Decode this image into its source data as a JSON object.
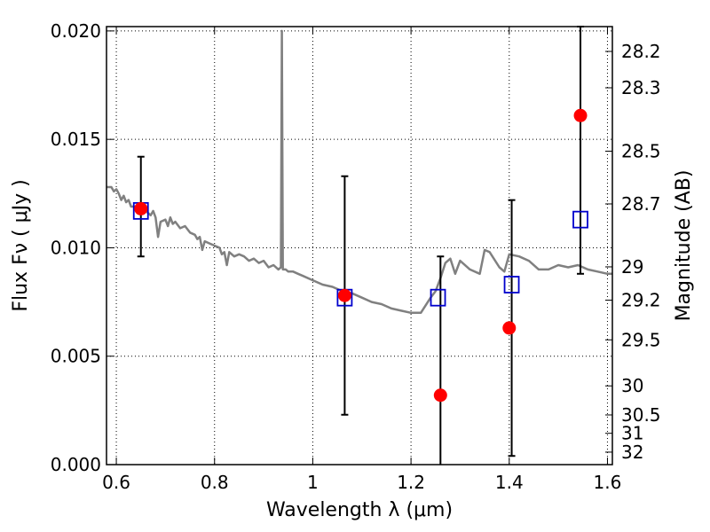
{
  "chart_data": {
    "type": "scatter",
    "title": "",
    "xlabel": "Wavelength  λ (μm)",
    "ylabel": "Flux  Fν  ( μJy )",
    "y2label": "Magnitude (AB)",
    "xlim": [
      0.58,
      1.61
    ],
    "ylim": [
      0.0,
      0.0202
    ],
    "grid": true,
    "x_ticks": [
      {
        "value": 0.6,
        "label": "0.6"
      },
      {
        "value": 0.8,
        "label": "0.8"
      },
      {
        "value": 1.0,
        "label": "1"
      },
      {
        "value": 1.2,
        "label": "1.2"
      },
      {
        "value": 1.4,
        "label": "1.4"
      },
      {
        "value": 1.6,
        "label": "1.6"
      }
    ],
    "y_ticks": [
      {
        "value": 0.0,
        "label": "0.000"
      },
      {
        "value": 0.005,
        "label": "0.005"
      },
      {
        "value": 0.01,
        "label": "0.010"
      },
      {
        "value": 0.015,
        "label": "0.015"
      },
      {
        "value": 0.02,
        "label": "0.020"
      }
    ],
    "mag_ticks": [
      {
        "mag": 28.2,
        "label": "28.2"
      },
      {
        "mag": 28.3,
        "label": "28.3"
      },
      {
        "mag": 28.5,
        "label": "28.5"
      },
      {
        "mag": 28.7,
        "label": "28.7"
      },
      {
        "mag": 29,
        "label": "29"
      },
      {
        "mag": 29.2,
        "label": "29.2"
      },
      {
        "mag": 29.5,
        "label": "29.5"
      },
      {
        "mag": 30,
        "label": "30"
      },
      {
        "mag": 30.5,
        "label": "30.5"
      },
      {
        "mag": 31,
        "label": "31"
      },
      {
        "mag": 32,
        "label": "32"
      }
    ],
    "model_color": "#808080",
    "model_sed": [
      [
        0.58,
        0.0128
      ],
      [
        0.59,
        0.0128
      ],
      [
        0.595,
        0.0126
      ],
      [
        0.6,
        0.0127
      ],
      [
        0.605,
        0.0125
      ],
      [
        0.61,
        0.0122
      ],
      [
        0.615,
        0.0124
      ],
      [
        0.62,
        0.0121
      ],
      [
        0.625,
        0.0122
      ],
      [
        0.63,
        0.0119
      ],
      [
        0.64,
        0.0119
      ],
      [
        0.65,
        0.0118
      ],
      [
        0.66,
        0.0117
      ],
      [
        0.67,
        0.0115
      ],
      [
        0.675,
        0.0117
      ],
      [
        0.68,
        0.0114
      ],
      [
        0.685,
        0.0105
      ],
      [
        0.69,
        0.0112
      ],
      [
        0.7,
        0.0113
      ],
      [
        0.705,
        0.011
      ],
      [
        0.71,
        0.0114
      ],
      [
        0.715,
        0.0111
      ],
      [
        0.72,
        0.0112
      ],
      [
        0.73,
        0.0109
      ],
      [
        0.74,
        0.011
      ],
      [
        0.75,
        0.0107
      ],
      [
        0.76,
        0.0106
      ],
      [
        0.765,
        0.0104
      ],
      [
        0.77,
        0.0105
      ],
      [
        0.775,
        0.0099
      ],
      [
        0.78,
        0.0103
      ],
      [
        0.79,
        0.0102
      ],
      [
        0.8,
        0.0101
      ],
      [
        0.81,
        0.01
      ],
      [
        0.815,
        0.0097
      ],
      [
        0.82,
        0.0098
      ],
      [
        0.825,
        0.0092
      ],
      [
        0.83,
        0.0098
      ],
      [
        0.84,
        0.0096
      ],
      [
        0.85,
        0.0097
      ],
      [
        0.86,
        0.0096
      ],
      [
        0.87,
        0.0094
      ],
      [
        0.88,
        0.0095
      ],
      [
        0.89,
        0.0093
      ],
      [
        0.9,
        0.0094
      ],
      [
        0.91,
        0.0091
      ],
      [
        0.92,
        0.0092
      ],
      [
        0.93,
        0.009
      ],
      [
        0.935,
        0.0091
      ],
      [
        0.937,
        0.02
      ],
      [
        0.939,
        0.009
      ],
      [
        0.945,
        0.009
      ],
      [
        0.95,
        0.0089
      ],
      [
        0.96,
        0.0089
      ],
      [
        0.97,
        0.0088
      ],
      [
        0.98,
        0.0087
      ],
      [
        1.0,
        0.0085
      ],
      [
        1.02,
        0.0083
      ],
      [
        1.04,
        0.0082
      ],
      [
        1.06,
        0.008
      ],
      [
        1.08,
        0.0079
      ],
      [
        1.1,
        0.0077
      ],
      [
        1.12,
        0.0075
      ],
      [
        1.14,
        0.0074
      ],
      [
        1.16,
        0.0072
      ],
      [
        1.18,
        0.0071
      ],
      [
        1.2,
        0.007
      ],
      [
        1.22,
        0.007
      ],
      [
        1.24,
        0.0077
      ],
      [
        1.25,
        0.008
      ],
      [
        1.26,
        0.0086
      ],
      [
        1.27,
        0.0093
      ],
      [
        1.28,
        0.0095
      ],
      [
        1.29,
        0.0088
      ],
      [
        1.3,
        0.0094
      ],
      [
        1.32,
        0.009
      ],
      [
        1.34,
        0.0088
      ],
      [
        1.35,
        0.0099
      ],
      [
        1.36,
        0.0098
      ],
      [
        1.38,
        0.0091
      ],
      [
        1.39,
        0.0089
      ],
      [
        1.4,
        0.0097
      ],
      [
        1.42,
        0.0096
      ],
      [
        1.44,
        0.0094
      ],
      [
        1.46,
        0.009
      ],
      [
        1.48,
        0.009
      ],
      [
        1.5,
        0.0092
      ],
      [
        1.52,
        0.0091
      ],
      [
        1.54,
        0.0092
      ],
      [
        1.56,
        0.009
      ],
      [
        1.58,
        0.0089
      ],
      [
        1.6,
        0.0088
      ],
      [
        1.61,
        0.0088
      ]
    ],
    "series": [
      {
        "marker": "square",
        "color": "#0000cc",
        "points": [
          {
            "x": 0.65,
            "y": 0.0117
          },
          {
            "x": 1.065,
            "y": 0.0077
          },
          {
            "x": 1.255,
            "y": 0.0077
          },
          {
            "x": 1.405,
            "y": 0.0083
          },
          {
            "x": 1.545,
            "y": 0.0113
          }
        ]
      },
      {
        "marker": "circle",
        "color": "#ff0000",
        "points": [
          {
            "x": 0.65,
            "y": 0.0118
          },
          {
            "x": 1.065,
            "y": 0.0078
          },
          {
            "x": 1.26,
            "y": 0.0032
          },
          {
            "x": 1.4,
            "y": 0.0063
          },
          {
            "x": 1.545,
            "y": 0.0161
          }
        ]
      }
    ],
    "errorbars": [
      {
        "x": 0.65,
        "low": 0.0096,
        "high": 0.0142
      },
      {
        "x": 1.065,
        "low": 0.0023,
        "high": 0.0133
      },
      {
        "x": 1.26,
        "low": 0.0,
        "high": 0.0096
      },
      {
        "x": 1.405,
        "low": 0.0004,
        "high": 0.0122
      },
      {
        "x": 1.545,
        "low": 0.0088,
        "high": 0.0202
      }
    ]
  }
}
